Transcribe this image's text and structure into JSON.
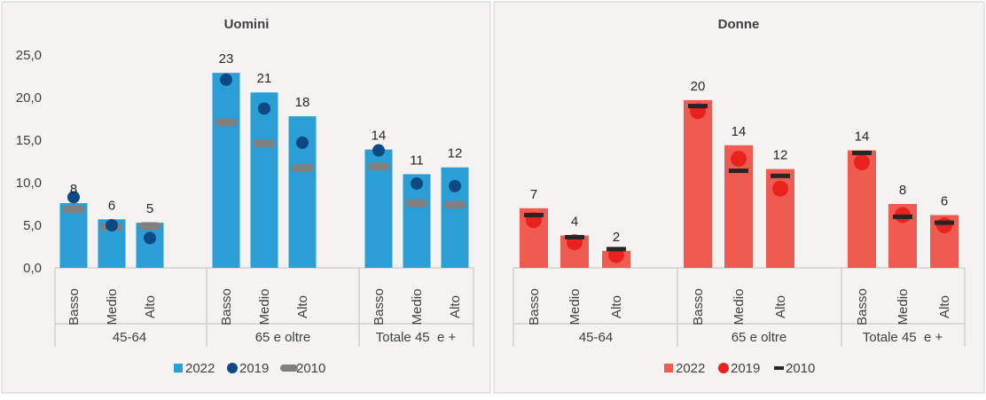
{
  "chart_data": [
    {
      "type": "bar",
      "title": "Uomini",
      "groups": [
        "45-64",
        "65 e oltre",
        "Totale 45  e +"
      ],
      "categories": [
        "Basso",
        "Medio",
        "Alto",
        "Basso",
        "Medio",
        "Alto",
        "Basso",
        "Medio",
        "Alto"
      ],
      "ylim": [
        0,
        25
      ],
      "yticks": [
        "0,0",
        "5,0",
        "10,0",
        "15,0",
        "20,0",
        "25,0"
      ],
      "series": [
        {
          "name": "2022",
          "kind": "bar",
          "values": [
            7.6,
            5.7,
            5.3,
            22.9,
            20.6,
            17.8,
            13.9,
            11.0,
            11.8
          ]
        },
        {
          "name": "2019",
          "kind": "dot",
          "values": [
            8.3,
            5.0,
            3.5,
            22.1,
            18.7,
            14.7,
            13.8,
            9.9,
            9.6
          ]
        },
        {
          "name": "2010",
          "kind": "dash",
          "values": [
            6.9,
            4.8,
            4.9,
            17.1,
            14.6,
            11.7,
            11.9,
            7.6,
            7.4
          ]
        }
      ],
      "data_labels": [
        "8",
        "6",
        "5",
        "23",
        "21",
        "18",
        "14",
        "11",
        "12"
      ],
      "legend": [
        "2022",
        "2019",
        "2010"
      ],
      "legend_position": "bottom"
    },
    {
      "type": "bar",
      "title": "Donne",
      "groups": [
        "45-64",
        "65 e oltre",
        "Totale 45  e +"
      ],
      "categories": [
        "Basso",
        "Medio",
        "Alto",
        "Basso",
        "Medio",
        "Alto",
        "Basso",
        "Medio",
        "Alto"
      ],
      "ylim": [
        0,
        25
      ],
      "series": [
        {
          "name": "2022",
          "kind": "bar",
          "values": [
            7.0,
            3.8,
            2.0,
            19.7,
            14.4,
            11.6,
            13.8,
            7.5,
            6.2
          ]
        },
        {
          "name": "2019",
          "kind": "dot",
          "values": [
            5.6,
            3.0,
            1.5,
            18.4,
            12.8,
            9.3,
            12.4,
            6.2,
            5.0
          ]
        },
        {
          "name": "2010",
          "kind": "dash",
          "values": [
            6.2,
            3.6,
            2.2,
            19.0,
            11.4,
            10.8,
            13.5,
            6.0,
            5.3
          ]
        }
      ],
      "data_labels": [
        "7",
        "4",
        "2",
        "20",
        "14",
        "12",
        "14",
        "8",
        "6"
      ],
      "legend": [
        "2022",
        "2019",
        "2010"
      ],
      "legend_position": "bottom"
    }
  ],
  "colors": {
    "uomini_bar": "#2a9fd6",
    "uomini_dot": "#0d4a84",
    "uomini_dash": "#808080",
    "donne_bar": "#ef5b50",
    "donne_dot": "#e8231f",
    "donne_dash": "#262626",
    "panel_bg": "#f4f3f2",
    "axis": "#bfbfbf",
    "text": "#404040"
  }
}
